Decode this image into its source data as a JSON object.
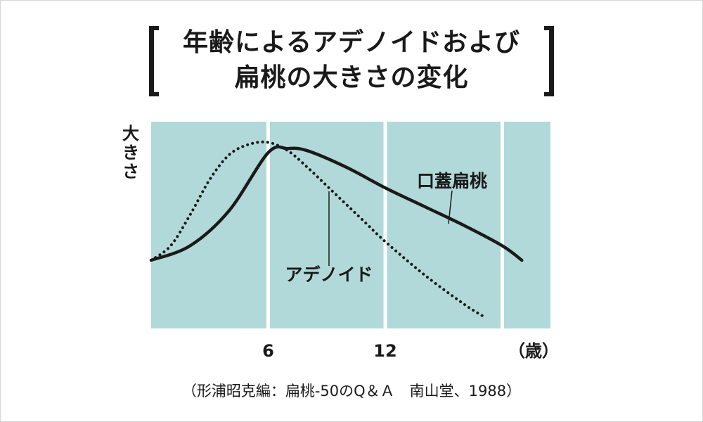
{
  "title_lines": [
    "年齢によるアデノイドおよび",
    "扁桃の大きさの変化"
  ],
  "source": "（形浦昭克編：扁桃-50のQ＆Ａ　南山堂、1988）",
  "colors": {
    "panel": "#b2d9d9",
    "divider": "#ffffff",
    "line": "#1a1a1a",
    "frame": "#d6d6d6"
  },
  "chart_data": {
    "type": "line",
    "title": "年齢によるアデノイドおよび扁桃の大きさの変化",
    "ylabel": "大きさ",
    "xlabel": "（歳）",
    "x_ticks": [
      "6",
      "12"
    ],
    "xlim": [
      0,
      20
    ],
    "ylim": [
      0,
      10
    ],
    "y_ticks": [],
    "series": [
      {
        "name": "口蓋扁桃",
        "style": "solid",
        "x": [
          0,
          2,
          4,
          6,
          7,
          8,
          10,
          12,
          14,
          16,
          18,
          19
        ],
        "y": [
          3.3,
          4.0,
          5.7,
          8.5,
          8.7,
          8.6,
          7.8,
          6.8,
          5.9,
          5.0,
          4.0,
          3.3
        ]
      },
      {
        "name": "アデノイド",
        "style": "dotted",
        "x": [
          0,
          1,
          2,
          3,
          4,
          5,
          6,
          7,
          8,
          9,
          10,
          11,
          12,
          14,
          16,
          17
        ],
        "y": [
          3.3,
          4.0,
          5.5,
          7.2,
          8.4,
          8.9,
          9.0,
          8.6,
          7.8,
          6.9,
          6.0,
          5.1,
          4.2,
          2.6,
          1.2,
          0.6
        ]
      }
    ],
    "annotations": [
      "口蓋扁桃",
      "アデノイド"
    ]
  }
}
